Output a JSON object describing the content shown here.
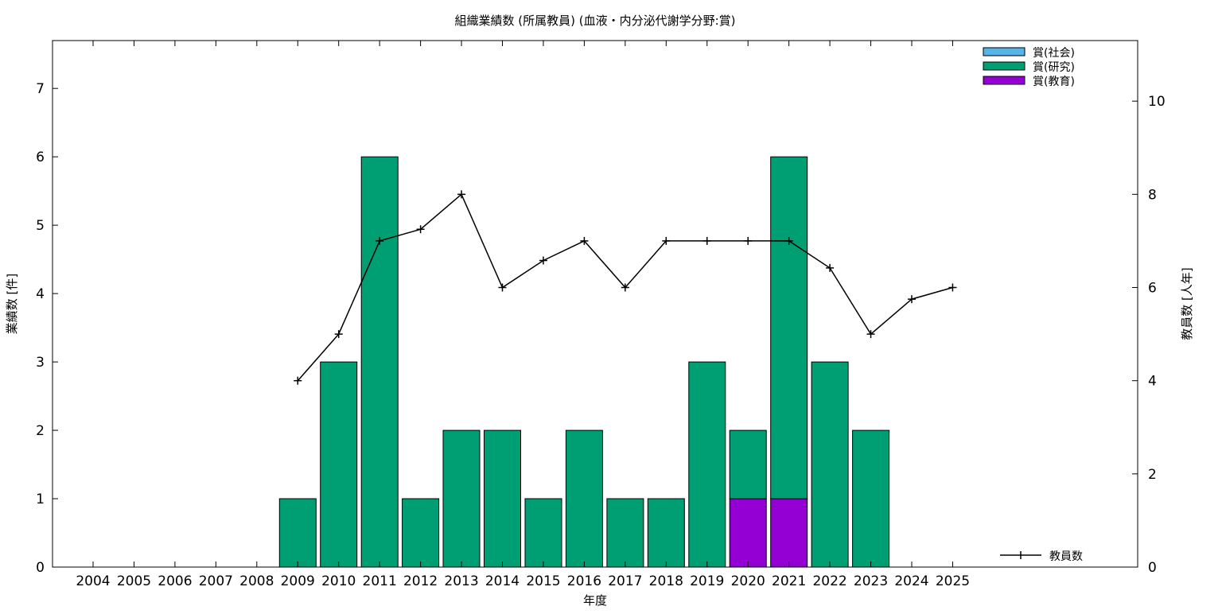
{
  "chart_data": {
    "type": "bar",
    "title": "組織業績数 (所属教員) (血液・内分泌代謝学分野:賞)",
    "xlabel": "年度",
    "ylabel": "業績数 [件]",
    "y2label": "教員数 [人年]",
    "categories": [
      "2004",
      "2005",
      "2006",
      "2007",
      "2008",
      "2009",
      "2010",
      "2011",
      "2012",
      "2013",
      "2014",
      "2015",
      "2016",
      "2017",
      "2018",
      "2019",
      "2020",
      "2021",
      "2022",
      "2023",
      "2024",
      "2025"
    ],
    "stacked": true,
    "series": [
      {
        "name": "賞(教育)",
        "color": "#9400d3",
        "values": [
          0,
          0,
          0,
          0,
          0,
          0,
          0,
          0,
          0,
          0,
          0,
          0,
          0,
          0,
          0,
          0,
          1,
          1,
          0,
          0,
          0,
          0
        ]
      },
      {
        "name": "賞(研究)",
        "color": "#009e73",
        "values": [
          0,
          0,
          0,
          0,
          0,
          1,
          3,
          6,
          1,
          2,
          2,
          1,
          2,
          1,
          1,
          3,
          1,
          5,
          3,
          2,
          0,
          0
        ]
      },
      {
        "name": "賞(社会)",
        "color": "#56b4e9",
        "values": [
          0,
          0,
          0,
          0,
          0,
          0,
          0,
          0,
          0,
          0,
          0,
          0,
          0,
          0,
          0,
          0,
          0,
          0,
          0,
          0,
          0,
          0
        ]
      }
    ],
    "legend_order": [
      "賞(社会)",
      "賞(研究)",
      "賞(教育)"
    ],
    "line_series": {
      "name": "教員数",
      "color": "#000000",
      "axis": "y2",
      "start_index": 5,
      "values": [
        4,
        5,
        7,
        7.25,
        8,
        6,
        6.58,
        7,
        6,
        7,
        7,
        7,
        7,
        6.42,
        5,
        5.75,
        6
      ]
    },
    "ylim": [
      0,
      7.7
    ],
    "yticks": [
      0,
      1,
      2,
      3,
      4,
      5,
      6,
      7
    ],
    "y2lim": [
      0,
      11.3
    ],
    "y2ticks": [
      0,
      2,
      4,
      6,
      8,
      10
    ],
    "legend_position": "top-right",
    "line_legend_position": "bottom-right",
    "grid": false
  }
}
